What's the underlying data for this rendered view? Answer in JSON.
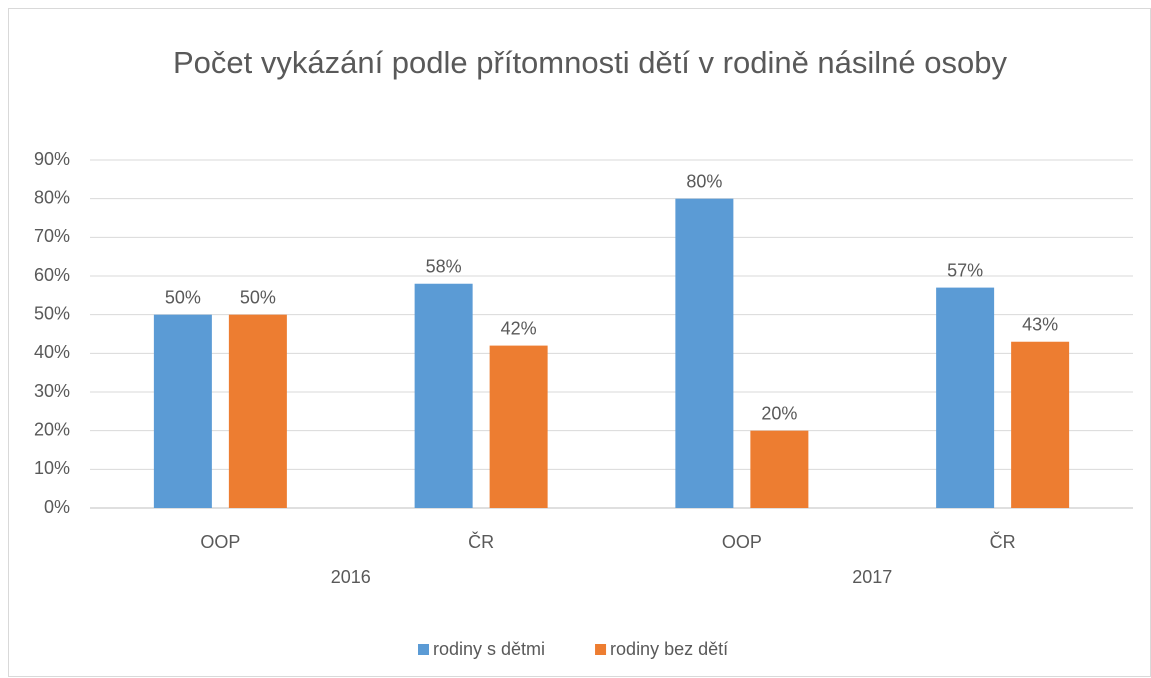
{
  "chart_data": {
    "type": "bar",
    "title": "Počet vykázání podle přítomnosti dětí v rodině násilné osoby",
    "categories": [
      "OOP",
      "ČR",
      "OOP",
      "ČR"
    ],
    "category_groups": [
      "2016",
      "2017"
    ],
    "series": [
      {
        "name": "rodiny s dětmi",
        "color": "#5b9bd5",
        "values": [
          50,
          58,
          80,
          57
        ],
        "value_labels": [
          "50%",
          "58%",
          "80%",
          "57%"
        ]
      },
      {
        "name": "rodiny bez dětí",
        "color": "#ed7d31",
        "values": [
          50,
          42,
          20,
          43
        ],
        "value_labels": [
          "50%",
          "42%",
          "20%",
          "43%"
        ]
      }
    ],
    "ylim": [
      0,
      90
    ],
    "yticks": [
      {
        "value": 0,
        "label": "0%"
      },
      {
        "value": 10,
        "label": "10%"
      },
      {
        "value": 20,
        "label": "20%"
      },
      {
        "value": 30,
        "label": "30%"
      },
      {
        "value": 40,
        "label": "40%"
      },
      {
        "value": 50,
        "label": "50%"
      },
      {
        "value": 60,
        "label": "60%"
      },
      {
        "value": 70,
        "label": "70%"
      },
      {
        "value": 80,
        "label": "80%"
      },
      {
        "value": 90,
        "label": "90%"
      }
    ],
    "grid": true,
    "legend": "bottom"
  }
}
